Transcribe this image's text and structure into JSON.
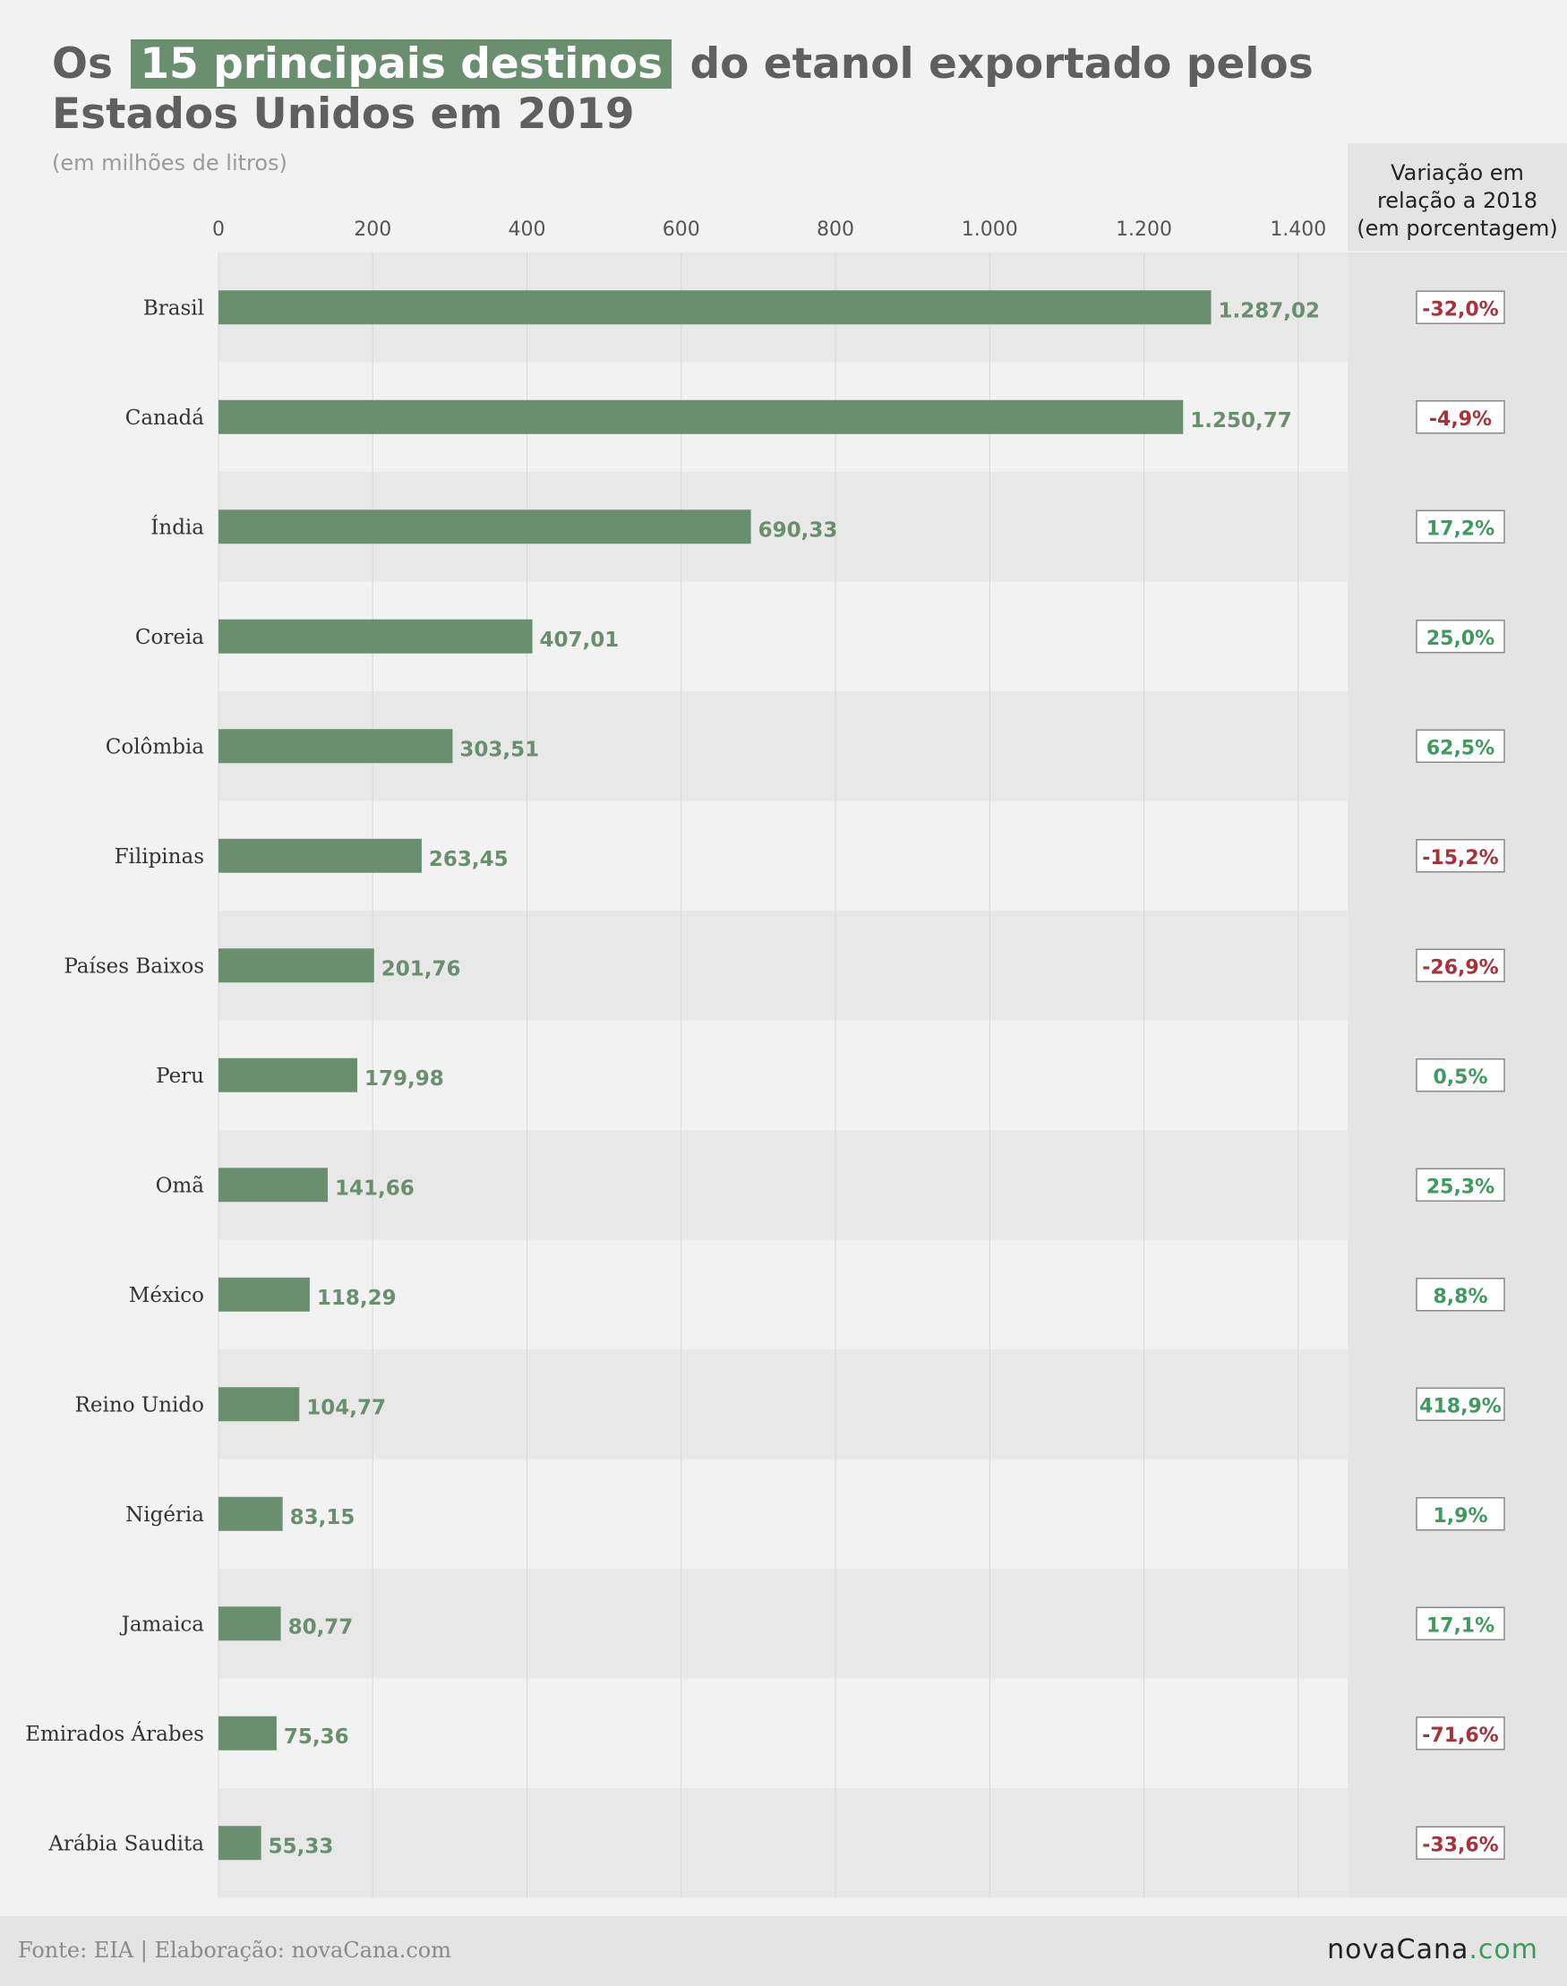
{
  "header": {
    "title_before": "Os",
    "title_highlight": "15 principais destinos",
    "title_after": "do etanol exportado pelos Estados Unidos em 2019",
    "subtitle": "(em milhões de litros)",
    "variation_header": [
      "Variação em",
      "relação a 2018",
      "(em porcentagem)"
    ]
  },
  "footer": {
    "source": "Fonte: EIA | Elaboração: novaCana.com",
    "logo_main": "novaCana",
    "logo_suffix": ".com"
  },
  "colors": {
    "bar": "#6a8f6f",
    "value_label": "#6a8f6f",
    "positive": "#3f9a5e",
    "negative": "#a8323a",
    "row_even": "#e8e8e8",
    "row_odd": "#f2f2f2",
    "variation_column": "#e4e4e4"
  },
  "chart_data": {
    "type": "bar",
    "orientation": "horizontal",
    "xlim": [
      0,
      1468
    ],
    "x_ticks": [
      0,
      200,
      400,
      600,
      800,
      1000,
      1200,
      1400
    ],
    "x_tick_labels": [
      "0",
      "200",
      "400",
      "600",
      "800",
      "1.000",
      "1.200",
      "1.400"
    ],
    "grid": true,
    "categories": [
      "Brasil",
      "Canadá",
      "Índia",
      "Coreia",
      "Colômbia",
      "Filipinas",
      "Países Baixos",
      "Peru",
      "Omã",
      "México",
      "Reino Unido",
      "Nigéria",
      "Jamaica",
      "Emirados Árabes",
      "Arábia Saudita"
    ],
    "values": [
      1287.02,
      1250.77,
      690.33,
      407.01,
      303.51,
      263.45,
      201.76,
      179.98,
      141.66,
      118.29,
      104.77,
      83.15,
      80.77,
      75.36,
      55.33
    ],
    "value_labels": [
      "1.287,02",
      "1.250,77",
      "690,33",
      "407,01",
      "303,51",
      "263,45",
      "201,76",
      "179,98",
      "141,66",
      "118,29",
      "104,77",
      "83,15",
      "80,77",
      "75,36",
      "55,33"
    ],
    "variation": [
      -32.0,
      -4.9,
      17.2,
      25.0,
      62.5,
      -15.2,
      -26.9,
      0.5,
      25.3,
      8.8,
      418.9,
      1.9,
      17.1,
      -71.6,
      -33.6
    ],
    "variation_labels": [
      "-32,0%",
      "-4,9%",
      "17,2%",
      "25,0%",
      "62,5%",
      "-15,2%",
      "-26,9%",
      "0,5%",
      "25,3%",
      "8,8%",
      "418,9%",
      "1,9%",
      "17,1%",
      "-71,6%",
      "-33,6%"
    ]
  }
}
